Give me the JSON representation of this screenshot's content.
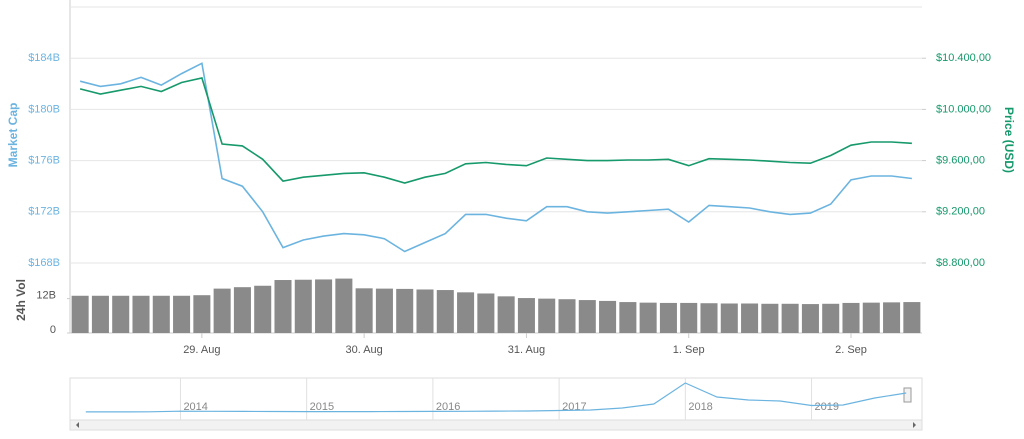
{
  "chart_data": [
    {
      "type": "line",
      "ylabel": "Market Cap",
      "y2label": "Price (USD)",
      "ylim": [
        168,
        188
      ],
      "yticks": [
        {
          "value": 168,
          "label": "$168B"
        },
        {
          "value": 172,
          "label": "$172B"
        },
        {
          "value": 176,
          "label": "$176B"
        },
        {
          "value": 180,
          "label": "$180B"
        },
        {
          "value": 184,
          "label": "$184B"
        }
      ],
      "y2lim": [
        8800,
        10800
      ],
      "y2ticks": [
        {
          "value": 8800,
          "label": "$8.800,00"
        },
        {
          "value": 9200,
          "label": "$9.200,00"
        },
        {
          "value": 9600,
          "label": "$9.600,00"
        },
        {
          "value": 10000,
          "label": "$10.000,00"
        },
        {
          "value": 10400,
          "label": "$10.400,00"
        }
      ],
      "grid": true,
      "series": [
        {
          "color": "#6cb4e0",
          "values": [
            182.2,
            181.8,
            182.0,
            182.5,
            181.9,
            182.8,
            183.6,
            174.6,
            174.0,
            172.0,
            169.2,
            169.8,
            170.1,
            170.3,
            170.2,
            169.9,
            168.9,
            169.6,
            170.3,
            171.8,
            171.8,
            171.5,
            171.3,
            172.4,
            172.4,
            172.0,
            171.9,
            172.0,
            172.1,
            172.2,
            171.2,
            172.5,
            172.4,
            172.3,
            172.0,
            171.8,
            171.9,
            172.6,
            174.5,
            174.8,
            174.8,
            174.6
          ]
        },
        {
          "color": "#16996b",
          "axis": "y2",
          "values": [
            10160,
            10120,
            10150,
            10180,
            10140,
            10210,
            10245,
            9730,
            9715,
            9610,
            9440,
            9470,
            9485,
            9500,
            9505,
            9470,
            9425,
            9470,
            9500,
            9575,
            9585,
            9570,
            9560,
            9620,
            9610,
            9600,
            9600,
            9605,
            9605,
            9610,
            9560,
            9615,
            9610,
            9605,
            9595,
            9585,
            9580,
            9640,
            9720,
            9745,
            9745,
            9735
          ]
        }
      ]
    },
    {
      "type": "bar",
      "ylabel": "24h Vol",
      "color": "#8a8a8a",
      "ylim": [
        0,
        22
      ],
      "yticks": [
        0,
        {
          "value": 12,
          "label": "12B"
        }
      ],
      "categories": [
        null,
        null,
        null,
        null,
        null,
        null,
        "29. Aug",
        null,
        null,
        null,
        null,
        null,
        null,
        null,
        "30. Aug",
        null,
        null,
        null,
        null,
        null,
        null,
        null,
        "31. Aug",
        null,
        null,
        null,
        null,
        null,
        null,
        null,
        "1. Sep",
        null,
        null,
        null,
        null,
        null,
        null,
        null,
        "2. Sep",
        null,
        null,
        null
      ],
      "values": [
        13.0,
        13.0,
        13.0,
        13.0,
        13.0,
        13.0,
        13.2,
        15.5,
        16.0,
        16.5,
        18.5,
        18.6,
        18.7,
        19.0,
        15.6,
        15.5,
        15.4,
        15.2,
        15.0,
        14.2,
        13.8,
        12.8,
        12.2,
        12.0,
        11.8,
        11.5,
        11.2,
        10.8,
        10.6,
        10.5,
        10.5,
        10.4,
        10.3,
        10.3,
        10.2,
        10.2,
        10.1,
        10.2,
        10.5,
        10.6,
        10.7,
        10.8
      ]
    },
    {
      "type": "area",
      "color": "#6cb4e0",
      "ylim": [
        0,
        300
      ],
      "categories": [
        null,
        null,
        null,
        "2014",
        null,
        null,
        null,
        "2015",
        null,
        null,
        null,
        "2016",
        null,
        null,
        null,
        "2017",
        null,
        null,
        null,
        "2018",
        null,
        null,
        null,
        "2019",
        null,
        null,
        null
      ],
      "values": [
        1.5,
        1.5,
        2,
        8,
        7,
        6,
        5,
        4,
        4,
        4,
        5,
        6,
        7,
        9,
        10,
        15,
        20,
        40,
        80,
        290,
        150,
        120,
        110,
        65,
        70,
        140,
        190
      ]
    }
  ]
}
